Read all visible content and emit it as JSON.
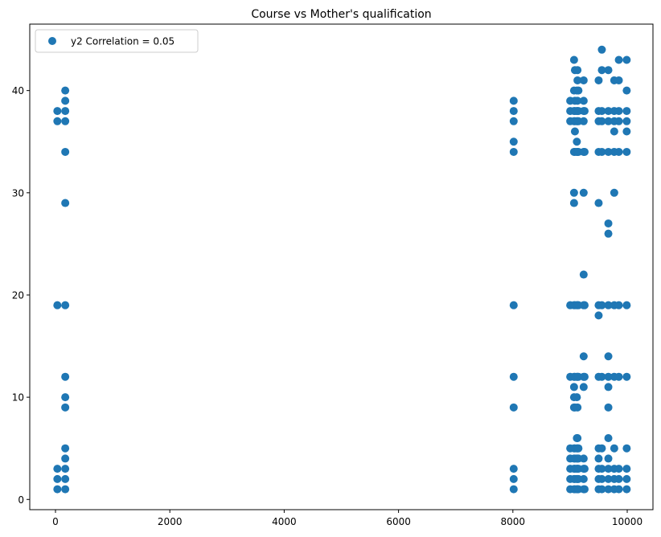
{
  "chart_data": {
    "type": "scatter",
    "title": "Course vs Mother's qualification",
    "xlabel": "",
    "ylabel": "",
    "xlim": [
      -450,
      10450
    ],
    "ylim": [
      -1,
      46.5
    ],
    "xticks": [
      0,
      2000,
      4000,
      6000,
      8000,
      10000
    ],
    "yticks": [
      0,
      10,
      20,
      30,
      40
    ],
    "grid": false,
    "legend_position": "top-left",
    "series": [
      {
        "name": "y2 Correlation = 0.05",
        "color": "#1f77b4",
        "points": [
          [
            33,
            38
          ],
          [
            33,
            37
          ],
          [
            33,
            19
          ],
          [
            33,
            3
          ],
          [
            33,
            2
          ],
          [
            33,
            1
          ],
          [
            171,
            40
          ],
          [
            171,
            39
          ],
          [
            171,
            38
          ],
          [
            171,
            37
          ],
          [
            171,
            34
          ],
          [
            171,
            29
          ],
          [
            171,
            19
          ],
          [
            171,
            12
          ],
          [
            171,
            10
          ],
          [
            171,
            9
          ],
          [
            171,
            5
          ],
          [
            171,
            4
          ],
          [
            171,
            3
          ],
          [
            171,
            2
          ],
          [
            171,
            1
          ],
          [
            8014,
            39
          ],
          [
            8014,
            38
          ],
          [
            8014,
            37
          ],
          [
            8014,
            35
          ],
          [
            8014,
            34
          ],
          [
            8014,
            19
          ],
          [
            8014,
            12
          ],
          [
            8014,
            9
          ],
          [
            8014,
            3
          ],
          [
            8014,
            2
          ],
          [
            8014,
            1
          ],
          [
            9003,
            39
          ],
          [
            9003,
            38
          ],
          [
            9003,
            37
          ],
          [
            9003,
            19
          ],
          [
            9003,
            12
          ],
          [
            9003,
            5
          ],
          [
            9003,
            4
          ],
          [
            9003,
            3
          ],
          [
            9003,
            2
          ],
          [
            9003,
            1
          ],
          [
            9070,
            43
          ],
          [
            9070,
            40
          ],
          [
            9070,
            38
          ],
          [
            9070,
            37
          ],
          [
            9070,
            34
          ],
          [
            9070,
            30
          ],
          [
            9070,
            29
          ],
          [
            9070,
            19
          ],
          [
            9070,
            12
          ],
          [
            9070,
            11
          ],
          [
            9070,
            10
          ],
          [
            9070,
            9
          ],
          [
            9070,
            5
          ],
          [
            9070,
            4
          ],
          [
            9070,
            3
          ],
          [
            9070,
            2
          ],
          [
            9070,
            1
          ],
          [
            9085,
            42
          ],
          [
            9085,
            39
          ],
          [
            9085,
            38
          ],
          [
            9085,
            37
          ],
          [
            9085,
            36
          ],
          [
            9085,
            34
          ],
          [
            9085,
            19
          ],
          [
            9085,
            12
          ],
          [
            9085,
            9
          ],
          [
            9085,
            5
          ],
          [
            9085,
            4
          ],
          [
            9085,
            3
          ],
          [
            9085,
            2
          ],
          [
            9085,
            1
          ],
          [
            9119,
            40
          ],
          [
            9119,
            38
          ],
          [
            9119,
            37
          ],
          [
            9119,
            35
          ],
          [
            9119,
            34
          ],
          [
            9119,
            19
          ],
          [
            9119,
            12
          ],
          [
            9119,
            10
          ],
          [
            9119,
            6
          ],
          [
            9119,
            5
          ],
          [
            9119,
            4
          ],
          [
            9119,
            3
          ],
          [
            9119,
            2
          ],
          [
            9119,
            1
          ],
          [
            9130,
            42
          ],
          [
            9130,
            41
          ],
          [
            9130,
            39
          ],
          [
            9130,
            38
          ],
          [
            9130,
            37
          ],
          [
            9130,
            34
          ],
          [
            9130,
            19
          ],
          [
            9130,
            12
          ],
          [
            9130,
            9
          ],
          [
            9130,
            6
          ],
          [
            9130,
            5
          ],
          [
            9130,
            4
          ],
          [
            9130,
            3
          ],
          [
            9130,
            2
          ],
          [
            9130,
            1
          ],
          [
            9147,
            40
          ],
          [
            9147,
            38
          ],
          [
            9147,
            37
          ],
          [
            9147,
            34
          ],
          [
            9147,
            19
          ],
          [
            9147,
            12
          ],
          [
            9147,
            5
          ],
          [
            9147,
            4
          ],
          [
            9147,
            3
          ],
          [
            9147,
            2
          ],
          [
            9147,
            1
          ],
          [
            9238,
            41
          ],
          [
            9238,
            39
          ],
          [
            9238,
            38
          ],
          [
            9238,
            37
          ],
          [
            9238,
            34
          ],
          [
            9238,
            30
          ],
          [
            9238,
            22
          ],
          [
            9238,
            19
          ],
          [
            9238,
            14
          ],
          [
            9238,
            12
          ],
          [
            9238,
            11
          ],
          [
            9238,
            4
          ],
          [
            9238,
            3
          ],
          [
            9238,
            2
          ],
          [
            9238,
            1
          ],
          [
            9254,
            38
          ],
          [
            9254,
            34
          ],
          [
            9254,
            19
          ],
          [
            9254,
            12
          ],
          [
            9254,
            3
          ],
          [
            9254,
            1
          ],
          [
            9500,
            41
          ],
          [
            9500,
            38
          ],
          [
            9500,
            37
          ],
          [
            9500,
            34
          ],
          [
            9500,
            29
          ],
          [
            9500,
            19
          ],
          [
            9500,
            18
          ],
          [
            9500,
            12
          ],
          [
            9500,
            5
          ],
          [
            9500,
            4
          ],
          [
            9500,
            3
          ],
          [
            9500,
            2
          ],
          [
            9500,
            1
          ],
          [
            9556,
            44
          ],
          [
            9556,
            42
          ],
          [
            9556,
            38
          ],
          [
            9556,
            37
          ],
          [
            9556,
            34
          ],
          [
            9556,
            19
          ],
          [
            9556,
            12
          ],
          [
            9556,
            5
          ],
          [
            9556,
            3
          ],
          [
            9556,
            2
          ],
          [
            9556,
            1
          ],
          [
            9670,
            42
          ],
          [
            9670,
            38
          ],
          [
            9670,
            37
          ],
          [
            9670,
            34
          ],
          [
            9670,
            27
          ],
          [
            9670,
            26
          ],
          [
            9670,
            19
          ],
          [
            9670,
            14
          ],
          [
            9670,
            12
          ],
          [
            9670,
            11
          ],
          [
            9670,
            9
          ],
          [
            9670,
            6
          ],
          [
            9670,
            4
          ],
          [
            9670,
            3
          ],
          [
            9670,
            2
          ],
          [
            9670,
            1
          ],
          [
            9773,
            41
          ],
          [
            9773,
            38
          ],
          [
            9773,
            37
          ],
          [
            9773,
            36
          ],
          [
            9773,
            34
          ],
          [
            9773,
            30
          ],
          [
            9773,
            19
          ],
          [
            9773,
            12
          ],
          [
            9773,
            5
          ],
          [
            9773,
            3
          ],
          [
            9773,
            2
          ],
          [
            9773,
            1
          ],
          [
            9853,
            43
          ],
          [
            9853,
            41
          ],
          [
            9853,
            38
          ],
          [
            9853,
            37
          ],
          [
            9853,
            34
          ],
          [
            9853,
            19
          ],
          [
            9853,
            12
          ],
          [
            9853,
            3
          ],
          [
            9853,
            2
          ],
          [
            9853,
            1
          ],
          [
            9991,
            43
          ],
          [
            9991,
            40
          ],
          [
            9991,
            38
          ],
          [
            9991,
            37
          ],
          [
            9991,
            36
          ],
          [
            9991,
            34
          ],
          [
            9991,
            19
          ],
          [
            9991,
            12
          ],
          [
            9991,
            5
          ],
          [
            9991,
            3
          ],
          [
            9991,
            2
          ],
          [
            9991,
            1
          ]
        ]
      }
    ]
  }
}
